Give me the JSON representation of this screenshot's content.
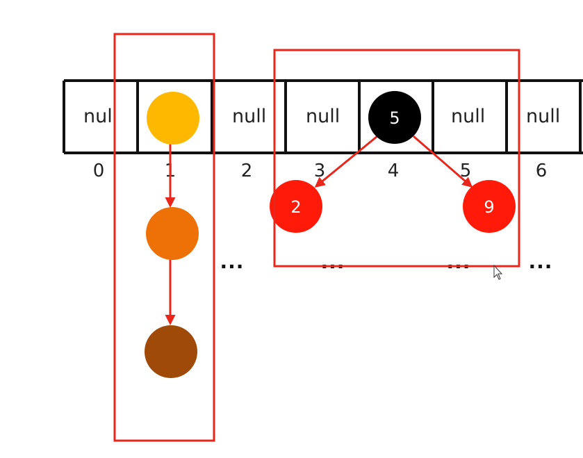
{
  "array": {
    "cells": [
      {
        "index": "0",
        "value": "nul"
      },
      {
        "index": "1",
        "value": ""
      },
      {
        "index": "2",
        "value": "null"
      },
      {
        "index": "3",
        "value": "null"
      },
      {
        "index": "4",
        "value": ""
      },
      {
        "index": "5",
        "value": "null"
      },
      {
        "index": "6",
        "value": "null"
      }
    ]
  },
  "list_nodes": [
    {
      "color": "#FFB800"
    },
    {
      "color": "#EE7108"
    },
    {
      "color": "#A04A0A"
    }
  ],
  "tree": {
    "root": {
      "label": "5",
      "color": "#000000"
    },
    "left": {
      "label": "2",
      "color": "#FF1A0A"
    },
    "right": {
      "label": "9",
      "color": "#FF1A0A"
    }
  },
  "ellipses": [
    "...",
    "...",
    "...",
    "..."
  ],
  "colors": {
    "highlight_box": "#E8261B",
    "edge": "#E8261B",
    "grid": "#111111"
  }
}
